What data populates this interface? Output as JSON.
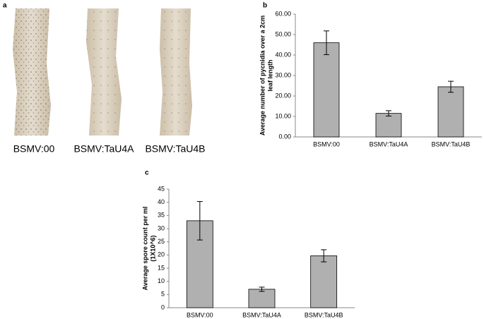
{
  "photo_panel": {
    "label": "a",
    "captions": [
      "BSMV:00",
      "BSMV:TaU4A",
      "BSMV:TaU4B"
    ]
  },
  "chart_data": [
    {
      "type": "bar",
      "panel_label": "b",
      "ylabel": [
        "Average number of pycnidia over a 2cm",
        "leaf length"
      ],
      "categories": [
        "BSMV:00",
        "BSMV:TaU4A",
        "BSMV:TaU4B"
      ],
      "values": [
        46,
        11.5,
        24.5
      ],
      "errors": [
        5.8,
        1.3,
        2.7
      ],
      "color": "#b0b0b0",
      "ylim": [
        0,
        60
      ],
      "yticks": [
        {
          "value": 0,
          "label": "0.00"
        },
        {
          "value": 10,
          "label": "10.00"
        },
        {
          "value": 20,
          "label": "20.00"
        },
        {
          "value": 30,
          "label": "30.00"
        },
        {
          "value": 40,
          "label": "40.00"
        },
        {
          "value": 50,
          "label": "50.00"
        },
        {
          "value": 60,
          "label": "60.00"
        }
      ],
      "grid": false
    },
    {
      "type": "bar",
      "panel_label": "c",
      "ylabel": [
        "Average spore count per ml",
        "(1X10^6)"
      ],
      "categories": [
        "BSMV:00",
        "BSMV:TaU4A",
        "BSMV:TaU4B"
      ],
      "values": [
        33,
        7,
        19.7
      ],
      "errors": [
        7.3,
        0.8,
        2.3
      ],
      "color": "#b0b0b0",
      "ylim": [
        0,
        45
      ],
      "yticks": [
        0,
        5,
        10,
        15,
        20,
        25,
        30,
        35,
        40,
        45
      ],
      "grid": false
    }
  ]
}
